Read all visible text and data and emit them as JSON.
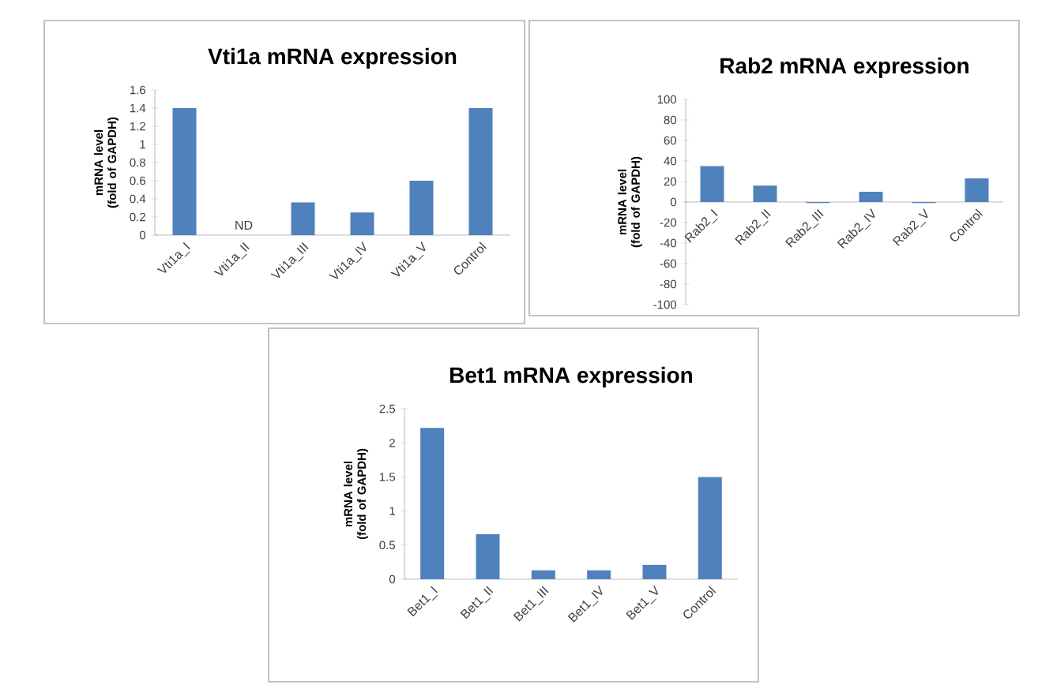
{
  "chart_data": [
    {
      "type": "bar",
      "title": "Vti1a mRNA expression",
      "ylabel": "mRNA level (fold of GAPDH)",
      "categories": [
        "Vti1a_I",
        "Vti1a_II",
        "Vti1a_III",
        "Vti1a_IV",
        "Vti1a_V",
        "Control"
      ],
      "values": [
        1.4,
        null,
        0.36,
        0.25,
        0.6,
        1.4
      ],
      "color": "#4f81bd",
      "ylim": [
        0,
        1.6
      ],
      "yticks": [
        0,
        0.2,
        0.4,
        0.6,
        0.8,
        1,
        1.2,
        1.4,
        1.6
      ],
      "annotations": [
        "ND"
      ]
    },
    {
      "type": "bar",
      "title": "Rab2 mRNA expression",
      "ylabel": "mRNA level (fold of GAPDH)",
      "categories": [
        "Rab2_I",
        "Rab2_II",
        "Rab2_III",
        "Rab2_IV",
        "Rab2_V",
        "Control"
      ],
      "values": [
        35,
        16,
        -1,
        10,
        -1,
        23
      ],
      "color": "#4f81bd",
      "ylim": [
        -100,
        100
      ],
      "yticks": [
        -100,
        -80,
        -60,
        -40,
        -20,
        0,
        20,
        40,
        60,
        80,
        100
      ]
    },
    {
      "type": "bar",
      "title": "Bet1 mRNA expression",
      "ylabel": "mRNA level (fold of GAPDH)",
      "categories": [
        "Bet1_I",
        "Bet1_II",
        "Bet1_III",
        "Bet1_IV",
        "Bet1_V",
        "Control"
      ],
      "values": [
        2.22,
        0.66,
        0.13,
        0.13,
        0.21,
        1.5
      ],
      "color": "#4f81bd",
      "ylim": [
        0,
        2.5
      ],
      "yticks": [
        0,
        0.5,
        1,
        1.5,
        2,
        2.5
      ]
    }
  ]
}
